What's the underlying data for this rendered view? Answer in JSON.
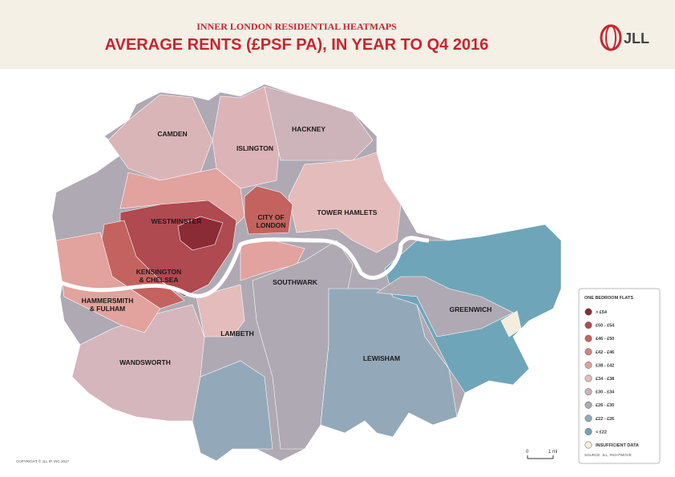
{
  "header": {
    "subtitle": "INNER LONDON RESIDENTIAL HEATMAPS",
    "title": "AVERAGE RENTS (£PSF PA), IN YEAR TO Q4 2016",
    "logo": "JLL"
  },
  "map": {
    "labels": [
      {
        "lines": [
          "CAMDEN"
        ]
      },
      {
        "lines": [
          "ISLINGTON"
        ]
      },
      {
        "lines": [
          "HACKNEY"
        ]
      },
      {
        "lines": [
          "WESTMINSTER"
        ]
      },
      {
        "lines": [
          "CITY OF",
          "LONDON"
        ]
      },
      {
        "lines": [
          "TOWER HAMLETS"
        ]
      },
      {
        "lines": [
          "KENSINGTON",
          "& CHELSEA"
        ]
      },
      {
        "lines": [
          "HAMMERSMITH",
          "& FULHAM"
        ]
      },
      {
        "lines": [
          "SOUTHWARK"
        ]
      },
      {
        "lines": [
          "GREENWICH"
        ]
      },
      {
        "lines": [
          "LAMBETH"
        ]
      },
      {
        "lines": [
          "LEWISHAM"
        ]
      },
      {
        "lines": [
          "WANDSWORTH"
        ]
      }
    ]
  },
  "legend": {
    "title": "ONE BEDROOM FLATS",
    "items": [
      {
        "label": "> £54",
        "color": "#8b2b36"
      },
      {
        "label": "£50 - £54",
        "color": "#ae4a50"
      },
      {
        "label": "£46 - £50",
        "color": "#c4625f"
      },
      {
        "label": "£42 - £46",
        "color": "#d5827e"
      },
      {
        "label": "£38 - £42",
        "color": "#e2a29d"
      },
      {
        "label": "£34 - £38",
        "color": "#e4bcbb"
      },
      {
        "label": "£30 - £34",
        "color": "#cdb3ba"
      },
      {
        "label": "£26 - £30",
        "color": "#afa9b3"
      },
      {
        "label": "£22 - £26",
        "color": "#93a9b9"
      },
      {
        "label": "< £22",
        "color": "#6fa5b9"
      },
      {
        "label": "INSUFFICIENT DATA",
        "color": "#f4eddc"
      }
    ],
    "source": "SOURCE: JLL, RIGHTMOVE"
  },
  "scale": {
    "start": "0",
    "end": "1 mi"
  },
  "copyright": "COPYRIGHT © JLL IP, INC 2017"
}
